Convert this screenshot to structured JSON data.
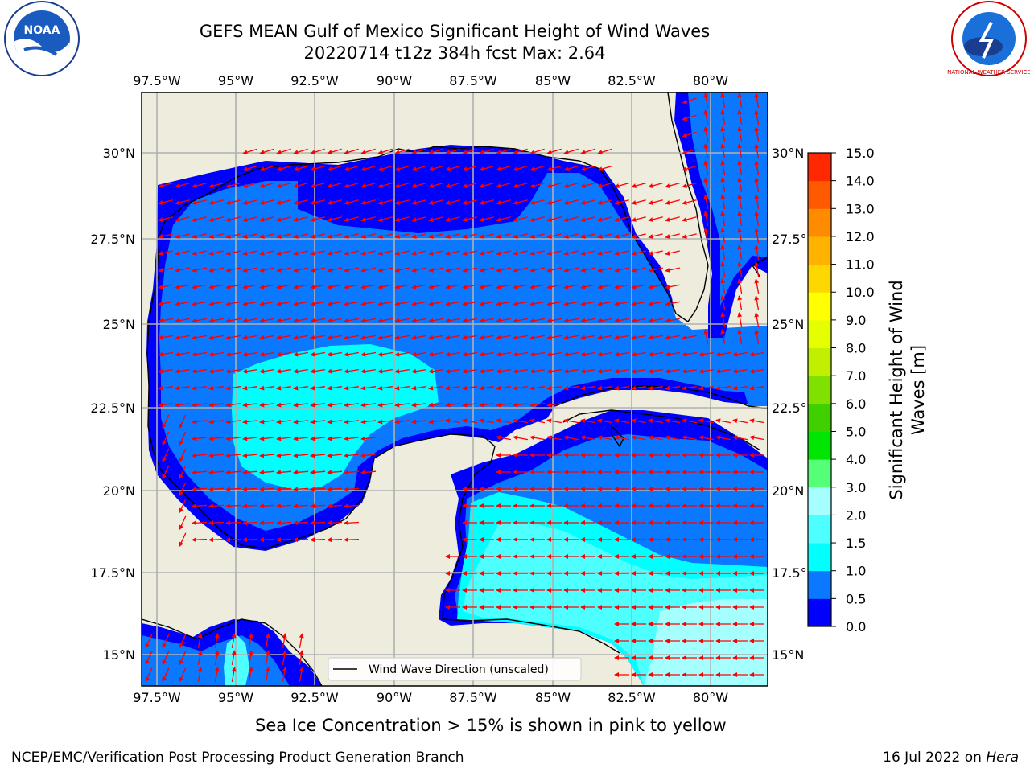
{
  "title_line1": "GEFS MEAN Gulf of Mexico Significant Height of Wind Waves",
  "title_line2": "20220714 t12z 384h fcst   Max: 2.64",
  "lon_labels": [
    "97.5°W",
    "95°W",
    "92.5°W",
    "90°W",
    "87.5°W",
    "85°W",
    "82.5°W",
    "80°W"
  ],
  "lat_labels": [
    "30°N",
    "27.5°N",
    "25°N",
    "22.5°N",
    "20°N",
    "17.5°N",
    "15°N"
  ],
  "legend_label": "Wind Wave Direction (unscaled)",
  "colorbar": {
    "label": "Significant Height of Wind Waves [m]",
    "label_line1": "Significant Height of Wind",
    "label_line2": "Waves [m]",
    "ticks": [
      "0.0",
      "0.5",
      "1.0",
      "1.5",
      "2.0",
      "3.0",
      "4.0",
      "5.0",
      "6.0",
      "7.0",
      "8.0",
      "9.0",
      "10.0",
      "11.0",
      "12.0",
      "13.0",
      "14.0",
      "15.0"
    ],
    "colors": [
      "#0000ff",
      "#0a78ff",
      "#00ffff",
      "#4dffff",
      "#a6ffff",
      "#55ff77",
      "#00e600",
      "#40d000",
      "#80e000",
      "#c0f000",
      "#e6ff00",
      "#ffff00",
      "#ffd700",
      "#ffb300",
      "#ff8c00",
      "#ff5a00",
      "#ff2800"
    ]
  },
  "ice_note": "Sea Ice Concentration > 15% is shown in pink to yellow",
  "footer_left": "NCEP/EMC/Verification Post Processing Product Generation Branch",
  "footer_right_prefix": "16 Jul 2022 on ",
  "footer_right_machine": "Hera",
  "logos": {
    "left": "NOAA",
    "right": "NATIONAL WEATHER SERVICE"
  },
  "colors": {
    "land": "#eeecdc",
    "wave_0_05": "#0000ff",
    "wave_05_10": "#0a78ff",
    "wave_10_15": "#00ffff",
    "wave_15_20": "#4dffff",
    "wave_20_30": "#a6ffff",
    "arrow": "#ff0000",
    "grid": "#b0b0b0"
  }
}
